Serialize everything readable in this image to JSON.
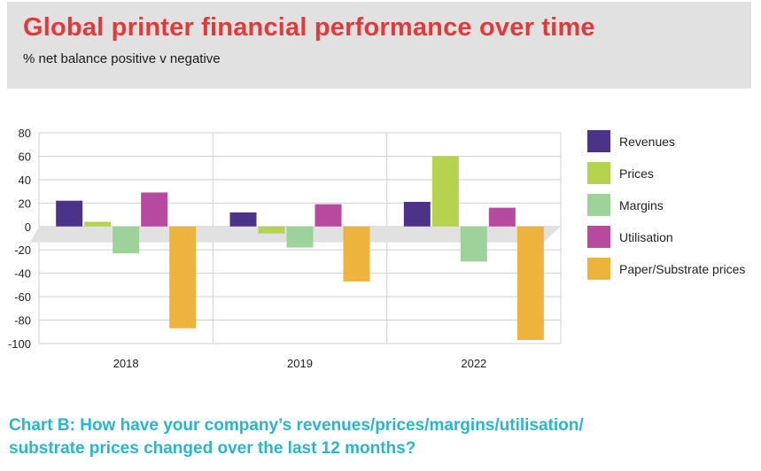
{
  "header": {
    "title": "Global printer financial performance over time",
    "subtitle": "% net balance positive v negative"
  },
  "caption": {
    "line1": "Chart B: How have your company’s revenues/prices/margins/utilisation/",
    "line2": "substrate prices changed over the last 12 months?"
  },
  "chart_data": {
    "type": "bar",
    "categories": [
      "2018",
      "2019",
      "2022"
    ],
    "series": [
      {
        "name": "Revenues",
        "values": [
          22,
          12,
          21
        ],
        "color": "#4b3487"
      },
      {
        "name": "Prices",
        "values": [
          4,
          -6,
          60
        ],
        "color": "#b5d34f"
      },
      {
        "name": "Margins",
        "values": [
          -23,
          -18,
          -30
        ],
        "color": "#9dd39b"
      },
      {
        "name": "Utilisation",
        "values": [
          29,
          19,
          16
        ],
        "color": "#b74a9e"
      },
      {
        "name": "Paper/Substrate prices",
        "values": [
          -87,
          -47,
          -97
        ],
        "color": "#edb33d"
      }
    ],
    "ylim": [
      -100,
      80
    ],
    "yticks": [
      80,
      60,
      40,
      20,
      0,
      -20,
      -40,
      -60,
      -80,
      -100
    ],
    "grid": true,
    "legend": "right"
  }
}
